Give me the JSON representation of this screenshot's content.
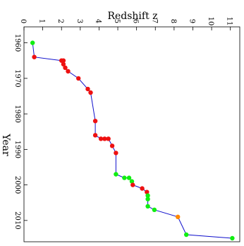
{
  "chart_data": {
    "type": "scatter",
    "orientation": "rotated",
    "title": "",
    "xlabel": "Redshift z",
    "ylabel": "Year",
    "x_axis_position": "top",
    "x_ticks": [
      "0",
      "1",
      "2",
      "3",
      "4",
      "5",
      "6",
      "7",
      "8",
      "9",
      "10",
      "11"
    ],
    "y_ticks": [
      "1960",
      "1970",
      "1980",
      "1990",
      "2000",
      "2010"
    ],
    "xlim": [
      0,
      11.5
    ],
    "ylim": [
      1955.5,
      2016
    ],
    "grid": false,
    "legend": "none",
    "line_color": "#1010cc",
    "colors": {
      "green": "#11ee11",
      "red": "#ee1111",
      "orange": "#ff8800"
    },
    "points": [
      {
        "z": 0.46,
        "year": 1960,
        "color": "green"
      },
      {
        "z": 0.55,
        "year": 1964,
        "color": "red"
      },
      {
        "z": 2.0,
        "year": 1965,
        "color": "red"
      },
      {
        "z": 2.1,
        "year": 1965,
        "color": "red"
      },
      {
        "z": 2.1,
        "year": 1966,
        "color": "red"
      },
      {
        "z": 2.2,
        "year": 1967,
        "color": "red"
      },
      {
        "z": 2.35,
        "year": 1968,
        "color": "red"
      },
      {
        "z": 2.9,
        "year": 1970,
        "color": "red"
      },
      {
        "z": 3.4,
        "year": 1973,
        "color": "red"
      },
      {
        "z": 3.55,
        "year": 1974,
        "color": "red"
      },
      {
        "z": 3.8,
        "year": 1982,
        "color": "red"
      },
      {
        "z": 3.8,
        "year": 1986,
        "color": "red"
      },
      {
        "z": 4.1,
        "year": 1987,
        "color": "red"
      },
      {
        "z": 4.3,
        "year": 1987,
        "color": "red"
      },
      {
        "z": 4.5,
        "year": 1987,
        "color": "red"
      },
      {
        "z": 4.7,
        "year": 1989,
        "color": "red"
      },
      {
        "z": 4.9,
        "year": 1991,
        "color": "red"
      },
      {
        "z": 4.9,
        "year": 1997,
        "color": "green"
      },
      {
        "z": 5.35,
        "year": 1998,
        "color": "green"
      },
      {
        "z": 5.6,
        "year": 1998,
        "color": "green"
      },
      {
        "z": 5.75,
        "year": 1999,
        "color": "green"
      },
      {
        "z": 5.8,
        "year": 2000,
        "color": "red"
      },
      {
        "z": 6.3,
        "year": 2001,
        "color": "red"
      },
      {
        "z": 6.55,
        "year": 2002,
        "color": "red"
      },
      {
        "z": 6.6,
        "year": 2003,
        "color": "green"
      },
      {
        "z": 6.6,
        "year": 2004,
        "color": "green"
      },
      {
        "z": 6.6,
        "year": 2006,
        "color": "green"
      },
      {
        "z": 6.95,
        "year": 2007,
        "color": "green"
      },
      {
        "z": 8.2,
        "year": 2009,
        "color": "orange"
      },
      {
        "z": 8.65,
        "year": 2014,
        "color": "green"
      },
      {
        "z": 11.1,
        "year": 2015,
        "color": "green"
      }
    ]
  }
}
